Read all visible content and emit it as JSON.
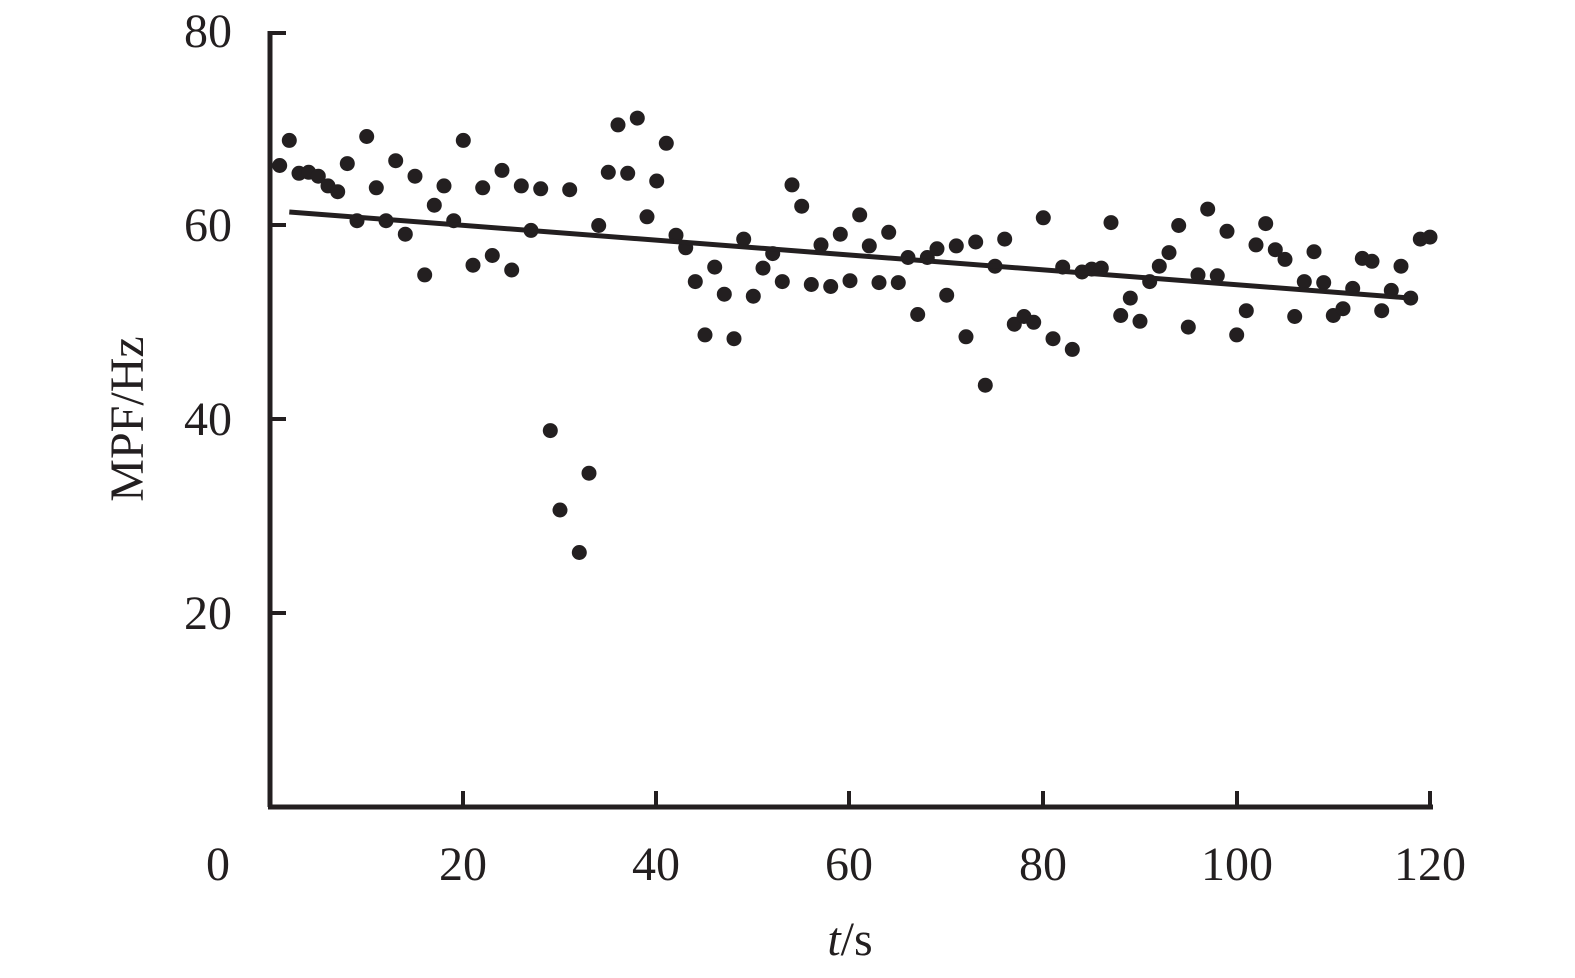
{
  "chart_data": {
    "type": "scatter",
    "title": "",
    "xlabel_italic": "t",
    "xlabel_unit": "/s",
    "ylabel": "MPF/Hz",
    "xlim": [
      0,
      120
    ],
    "ylim": [
      0,
      80
    ],
    "x_origin_label": "0",
    "x_ticks": [
      "20",
      "40",
      "60",
      "80",
      "100",
      "120"
    ],
    "y_ticks": [
      "20",
      "40",
      "60",
      "80"
    ],
    "grid": false,
    "legend": "none",
    "marker_color": "#231f20",
    "series": [
      {
        "x": [
          1,
          2,
          3,
          4,
          5,
          6,
          7,
          8,
          9,
          10,
          11,
          12,
          13,
          14,
          15,
          16,
          17,
          18,
          19,
          20,
          21,
          22,
          23,
          24,
          25,
          26,
          27,
          28,
          29,
          30,
          31,
          32,
          33,
          34,
          35,
          36,
          37,
          38,
          39,
          40,
          41,
          42,
          43,
          44,
          45,
          46,
          47,
          48,
          49,
          50,
          51,
          52,
          53,
          54,
          55,
          56,
          57,
          58,
          59,
          60,
          61,
          62,
          63,
          64,
          65,
          66,
          67,
          68,
          69,
          70,
          71,
          72,
          73,
          74,
          75,
          76,
          77,
          78,
          79,
          80,
          81,
          82,
          83,
          84,
          85,
          86,
          87,
          88,
          89,
          90,
          91,
          92,
          93,
          94,
          95,
          96,
          97,
          98,
          99,
          100,
          101,
          102,
          103,
          104,
          105,
          106,
          107,
          108,
          109,
          110,
          111,
          112,
          113,
          114,
          115,
          116,
          117,
          118,
          119,
          120
        ],
        "y": [
          66.3,
          68.9,
          65.5,
          65.6,
          65.2,
          64.2,
          63.6,
          66.5,
          60.6,
          69.3,
          64,
          60.6,
          66.8,
          59.2,
          65.2,
          55,
          62.2,
          64.2,
          60.6,
          68.9,
          56,
          64,
          57,
          65.8,
          55.5,
          64.2,
          59.6,
          63.9,
          38.9,
          30.7,
          63.8,
          26.3,
          34.5,
          60.1,
          65.6,
          70.5,
          65.5,
          71.2,
          61,
          64.7,
          68.6,
          59.1,
          57.8,
          54.3,
          48.8,
          55.8,
          53,
          48.4,
          58.7,
          52.8,
          55.7,
          57.2,
          54.3,
          64.3,
          62.1,
          54,
          58.1,
          53.8,
          59.2,
          54.4,
          61.2,
          58,
          54.2,
          59.4,
          54.2,
          56.8,
          50.9,
          56.8,
          57.7,
          52.9,
          58,
          48.6,
          58.4,
          43.6,
          55.9,
          58.7,
          49.9,
          50.7,
          50.1,
          60.9,
          48.4,
          55.8,
          47.3,
          55.3,
          55.6,
          55.7,
          60.4,
          50.8,
          52.6,
          50.2,
          54.3,
          55.9,
          57.3,
          60.1,
          49.6,
          55,
          61.8,
          54.9,
          59.5,
          48.8,
          51.3,
          58.1,
          60.3,
          57.6,
          56.6,
          50.7,
          54.3,
          57.4,
          54.2,
          50.8,
          51.5,
          53.6,
          56.7,
          56.4,
          51.3,
          53.4,
          55.9,
          52.6,
          58.7,
          58.9
        ]
      }
    ],
    "trend_line": {
      "x": [
        2,
        118
      ],
      "y": [
        61.5,
        52.6
      ]
    }
  }
}
